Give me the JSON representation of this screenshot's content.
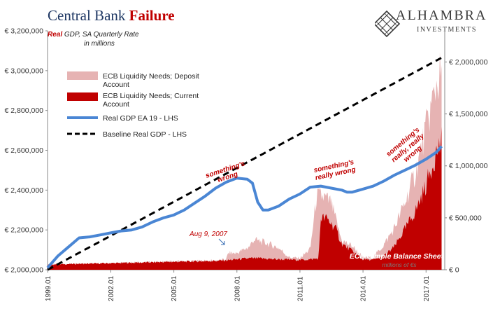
{
  "header": {
    "title_main": "Central Bank",
    "title_highlight": "Failure",
    "subtitle_real": "Real",
    "subtitle_rest": " GDP, SA Quarterly Rate",
    "subtitle_units": "in millions"
  },
  "logo": {
    "name": "ALHAMBRA",
    "sub": "INVESTMENTS",
    "icon": "diamond-lattice-icon"
  },
  "colors": {
    "deposit": "#e6b3b3",
    "current": "#c00000",
    "gdp": "#4a86d4",
    "baseline": "#000000",
    "annotation": "#c00000",
    "title": "#1f3864"
  },
  "chart_data": {
    "type": "line",
    "x_axis": {
      "range": [
        1999.0,
        2017.9
      ],
      "ticks": [
        "1999.01",
        "2002.01",
        "2005.01",
        "2008.01",
        "2011.01",
        "2014.01",
        "2017.01"
      ]
    },
    "y_left": {
      "range": [
        2000000,
        3200000
      ],
      "ticks": [
        "€ 2,000,000",
        "€ 2,200,000",
        "€ 2,400,000",
        "€ 2,600,000",
        "€ 2,800,000",
        "€ 3,000,000",
        "€ 3,200,000"
      ]
    },
    "y_right": {
      "range": [
        0,
        2300000
      ],
      "ticks": [
        "€ 0",
        "€ 500,000",
        "€ 1,000,000",
        "€ 1,500,000",
        "€ 2,000,000"
      ]
    },
    "legend": {
      "placement": "top-left",
      "items": [
        {
          "key": "deposit",
          "label": "ECB Liquidity Needs; Deposit Account"
        },
        {
          "key": "current",
          "label": "ECB Liquidity Needs; Current Account"
        },
        {
          "key": "gdp",
          "label": "Real GDP EA 19 - LHS"
        },
        {
          "key": "baseline",
          "label": "Baseline Real GDP - LHS"
        }
      ]
    },
    "series": [
      {
        "name": "Real GDP EA 19 - LHS",
        "axis": "left",
        "x": [
          1999.0,
          1999.5,
          2000.0,
          2000.5,
          2001.0,
          2001.5,
          2002.0,
          2002.5,
          2003.0,
          2003.5,
          2004.0,
          2004.5,
          2005.0,
          2005.5,
          2006.0,
          2006.5,
          2007.0,
          2007.5,
          2008.0,
          2008.5,
          2008.75,
          2009.0,
          2009.25,
          2009.5,
          2010.0,
          2010.5,
          2011.0,
          2011.5,
          2012.0,
          2012.5,
          2013.0,
          2013.25,
          2013.5,
          2014.0,
          2014.5,
          2015.0,
          2015.5,
          2016.0,
          2016.5,
          2017.0,
          2017.5,
          2017.75
        ],
        "values": [
          2010000,
          2070000,
          2115000,
          2160000,
          2165000,
          2175000,
          2185000,
          2195000,
          2200000,
          2215000,
          2240000,
          2260000,
          2275000,
          2300000,
          2335000,
          2370000,
          2410000,
          2440000,
          2460000,
          2455000,
          2435000,
          2340000,
          2300000,
          2300000,
          2320000,
          2355000,
          2380000,
          2415000,
          2420000,
          2410000,
          2400000,
          2390000,
          2390000,
          2405000,
          2420000,
          2445000,
          2475000,
          2500000,
          2525000,
          2555000,
          2590000,
          2620000
        ]
      },
      {
        "name": "Baseline Real GDP - LHS",
        "axis": "left",
        "x": [
          1999.0,
          2017.75
        ],
        "values": [
          2000000,
          3065000
        ]
      },
      {
        "name": "ECB Liquidity Needs; Deposit Account",
        "axis": "right",
        "x": [
          1999.0,
          2007.0,
          2007.5,
          2007.6,
          2008.0,
          2008.6,
          2008.8,
          2009.0,
          2009.5,
          2010.0,
          2010.5,
          2011.0,
          2011.5,
          2011.8,
          2012.0,
          2012.2,
          2012.5,
          2012.9,
          2013.0,
          2013.5,
          2014.0,
          2014.5,
          2015.0,
          2015.5,
          2016.0,
          2016.5,
          2017.0,
          2017.5,
          2017.75
        ],
        "values": [
          50000,
          90000,
          100000,
          160000,
          160000,
          220000,
          290000,
          280000,
          250000,
          210000,
          120000,
          110000,
          200000,
          700000,
          710000,
          690000,
          640000,
          350000,
          280000,
          230000,
          120000,
          120000,
          240000,
          400000,
          640000,
          930000,
          1350000,
          1780000,
          1900000
        ]
      },
      {
        "name": "ECB Liquidity Needs; Current Account",
        "axis": "right",
        "x": [
          1999.0,
          2007.0,
          2007.5,
          2008.0,
          2008.6,
          2009.0,
          2010.0,
          2011.0,
          2011.5,
          2011.9,
          2012.0,
          2012.3,
          2012.7,
          2013.0,
          2013.5,
          2014.0,
          2014.5,
          2015.0,
          2015.5,
          2016.0,
          2016.5,
          2017.0,
          2017.5,
          2017.75
        ],
        "values": [
          50000,
          85000,
          90000,
          100000,
          110000,
          110000,
          100000,
          95000,
          100000,
          110000,
          500000,
          490000,
          400000,
          250000,
          180000,
          100000,
          95000,
          130000,
          220000,
          390000,
          560000,
          810000,
          1130000,
          1230000
        ]
      }
    ],
    "annotations": [
      {
        "text": "something's wrong",
        "lines": [
          "something's",
          "wrong"
        ]
      },
      {
        "text": "something's really wrong",
        "lines": [
          "something's",
          "really wrong"
        ]
      },
      {
        "text": "something's really, really wrong",
        "lines": [
          "something's",
          "really, really",
          "wrong"
        ]
      },
      {
        "text": "Aug 9, 2007",
        "lines": [
          "Aug 9, 2007"
        ]
      },
      {
        "text": "ECB Simple Balance Sheet",
        "lines": [
          "ECB Simple Balance Sheet"
        ]
      },
      {
        "text": "millions of €s",
        "lines": [
          "millions of €s"
        ]
      }
    ]
  }
}
